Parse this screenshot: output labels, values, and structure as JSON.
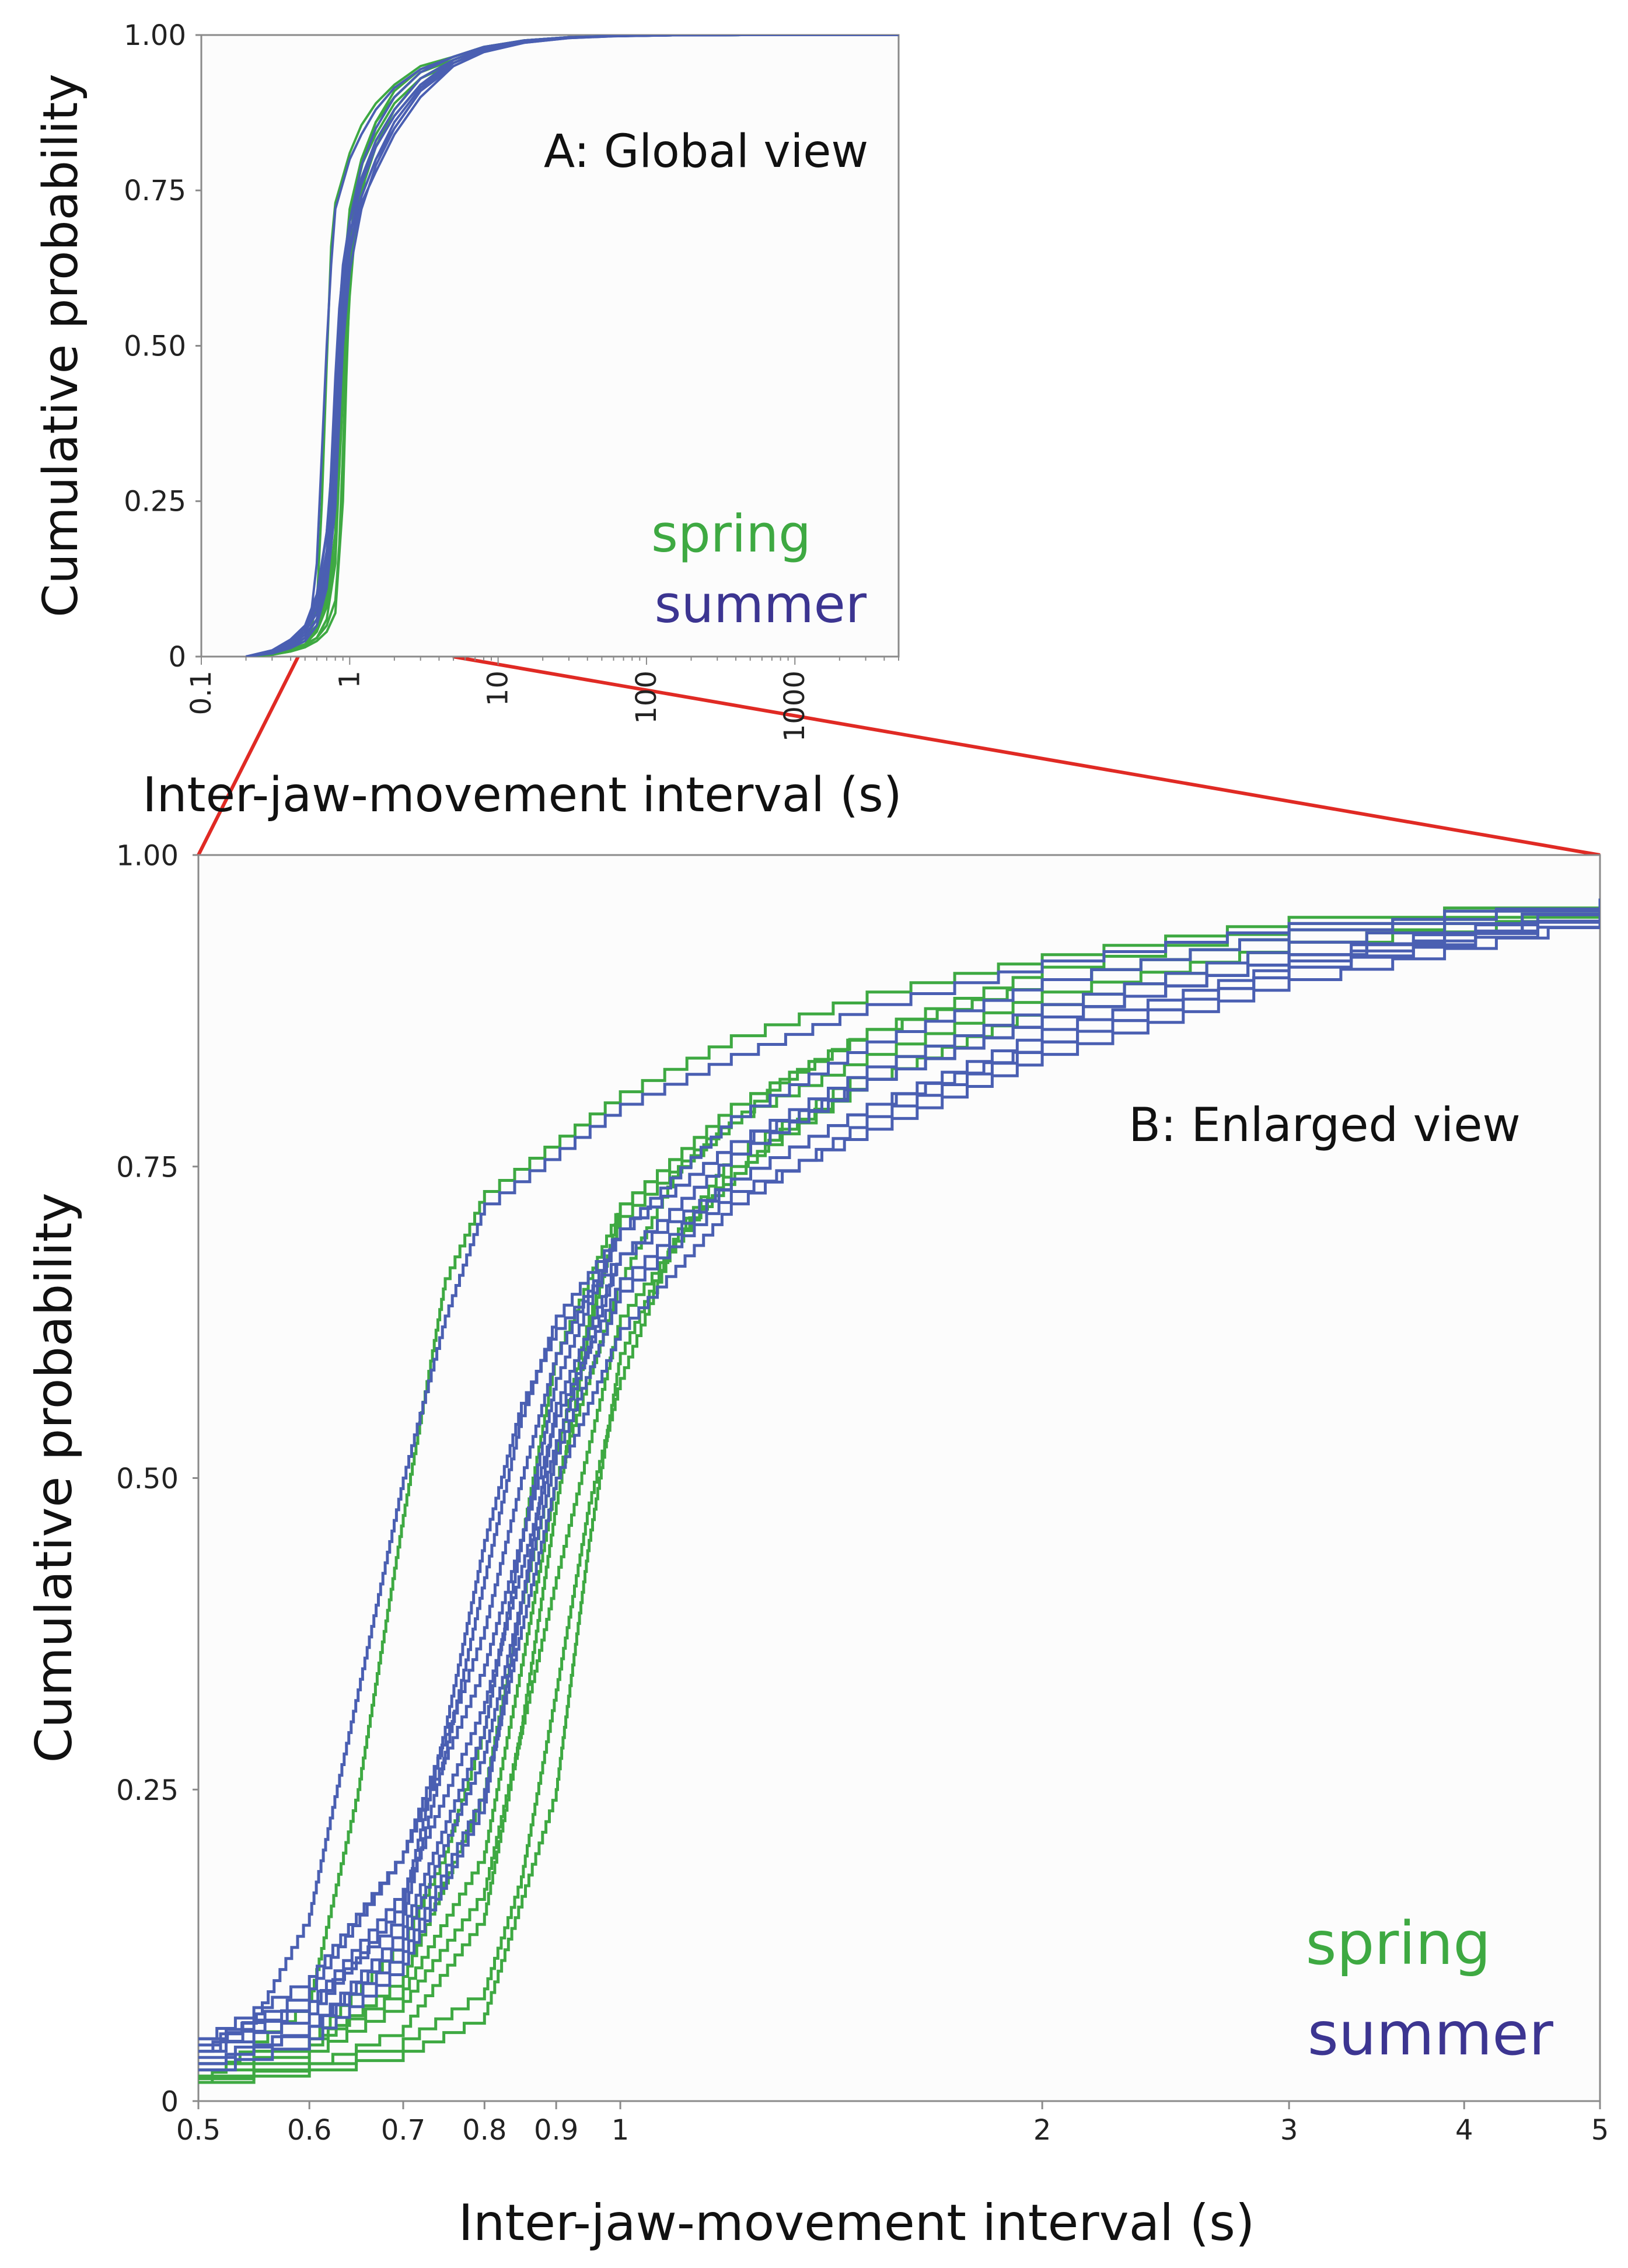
{
  "colors": {
    "spring": "#3ea942",
    "summer": "#4a5fb2",
    "spring_text": "#3ea942",
    "summer_text": "#3c3591",
    "zoom_lines": "#e02a24"
  },
  "chart_data": [
    {
      "type": "line",
      "panel": "A",
      "annotation": "A: Global view",
      "xlabel": "Inter-jaw-movement interval (s)",
      "ylabel": "Cumulative probability",
      "x_scale": "log",
      "xlim": [
        0.1,
        5000
      ],
      "ylim": [
        0,
        1
      ],
      "x_ticks": [
        "0.1",
        "1",
        "10",
        "100",
        "1000"
      ],
      "y_ticks": [
        "0",
        "0.25",
        "0.50",
        "0.75",
        "1.00"
      ],
      "legend": [
        {
          "name": "spring",
          "color": "#3ea942"
        },
        {
          "name": "summer",
          "color": "#3c3591"
        }
      ],
      "legend_position": "bottom-right",
      "note": "Same empirical CDF curves as panel B, shown over the full interval range"
    },
    {
      "type": "line",
      "panel": "B",
      "annotation": "B: Enlarged view",
      "xlabel": "Inter-jaw-movement interval (s)",
      "ylabel": "Cumulative probability",
      "x_scale": "log",
      "xlim": [
        0.5,
        5
      ],
      "ylim": [
        0,
        1
      ],
      "x_ticks": [
        "0.5",
        "0.6",
        "0.7",
        "0.8",
        "0.9",
        "1",
        "2",
        "3",
        "4",
        "5"
      ],
      "y_ticks": [
        "0",
        "0.25",
        "0.50",
        "0.75",
        "1.00"
      ],
      "legend": [
        {
          "name": "spring",
          "color": "#3ea942"
        },
        {
          "name": "summer",
          "color": "#3c3591"
        }
      ],
      "legend_position": "bottom-right",
      "series": [
        {
          "name": "spring",
          "x": [
            0.5,
            0.6,
            0.65,
            0.7,
            0.75,
            0.8,
            1.0,
            1.2,
            1.5,
            2,
            3,
            5
          ],
          "y": [
            0.015,
            0.08,
            0.25,
            0.47,
            0.66,
            0.73,
            0.81,
            0.855,
            0.89,
            0.92,
            0.95,
            0.965
          ]
        },
        {
          "name": "spring",
          "x": [
            0.5,
            0.6,
            0.7,
            0.8,
            0.85,
            0.9,
            0.95,
            1.0,
            1.2,
            1.5,
            2,
            3,
            5
          ],
          "y": [
            0.018,
            0.03,
            0.06,
            0.15,
            0.3,
            0.48,
            0.62,
            0.72,
            0.8,
            0.86,
            0.9,
            0.94,
            0.96
          ]
        },
        {
          "name": "spring",
          "x": [
            0.5,
            0.6,
            0.7,
            0.8,
            0.85,
            0.9,
            0.95,
            1.0,
            1.1,
            1.2,
            1.5,
            2,
            3,
            5
          ],
          "y": [
            0.02,
            0.03,
            0.05,
            0.09,
            0.18,
            0.33,
            0.48,
            0.58,
            0.7,
            0.76,
            0.83,
            0.88,
            0.93,
            0.955
          ]
        },
        {
          "name": "spring",
          "x": [
            0.5,
            0.6,
            0.7,
            0.8,
            0.9,
            0.95,
            1.0,
            1.1,
            1.3,
            1.5,
            2,
            3,
            5
          ],
          "y": [
            0.015,
            0.025,
            0.04,
            0.07,
            0.25,
            0.45,
            0.6,
            0.7,
            0.78,
            0.82,
            0.87,
            0.92,
            0.955
          ]
        },
        {
          "name": "spring",
          "x": [
            0.5,
            0.6,
            0.7,
            0.8,
            0.85,
            0.9,
            1.0,
            1.1,
            1.3,
            1.5,
            2,
            3,
            5
          ],
          "y": [
            0.03,
            0.05,
            0.09,
            0.2,
            0.35,
            0.5,
            0.66,
            0.75,
            0.82,
            0.86,
            0.9,
            0.94,
            0.965
          ]
        },
        {
          "name": "spring",
          "x": [
            0.5,
            0.6,
            0.7,
            0.8,
            0.85,
            0.9,
            0.95,
            1.0,
            1.2,
            1.5,
            2,
            3,
            5
          ],
          "y": [
            0.025,
            0.045,
            0.1,
            0.25,
            0.4,
            0.52,
            0.63,
            0.71,
            0.79,
            0.84,
            0.89,
            0.93,
            0.96
          ]
        },
        {
          "name": "spring",
          "x": [
            0.5,
            0.6,
            0.7,
            0.75,
            0.8,
            0.85,
            0.9,
            1.0,
            1.2,
            1.5,
            2,
            3,
            5
          ],
          "y": [
            0.03,
            0.05,
            0.13,
            0.2,
            0.3,
            0.45,
            0.6,
            0.72,
            0.8,
            0.86,
            0.91,
            0.945,
            0.965
          ]
        },
        {
          "name": "spring",
          "x": [
            0.5,
            0.6,
            0.7,
            0.8,
            0.9,
            1.0,
            1.2,
            1.5,
            2,
            3,
            5
          ],
          "y": [
            0.02,
            0.04,
            0.08,
            0.17,
            0.42,
            0.63,
            0.75,
            0.82,
            0.88,
            0.93,
            0.96
          ]
        },
        {
          "name": "summer",
          "x": [
            0.5,
            0.55,
            0.6,
            0.65,
            0.7,
            0.75,
            0.8,
            1.0,
            1.2,
            1.5,
            2,
            3,
            5
          ],
          "y": [
            0.04,
            0.07,
            0.15,
            0.33,
            0.5,
            0.63,
            0.72,
            0.8,
            0.84,
            0.88,
            0.915,
            0.945,
            0.965
          ]
        },
        {
          "name": "summer",
          "x": [
            0.5,
            0.6,
            0.7,
            0.75,
            0.8,
            0.85,
            0.9,
            1.0,
            1.2,
            1.5,
            2,
            3,
            5
          ],
          "y": [
            0.05,
            0.08,
            0.15,
            0.28,
            0.42,
            0.55,
            0.63,
            0.7,
            0.77,
            0.82,
            0.87,
            0.92,
            0.955
          ]
        },
        {
          "name": "summer",
          "x": [
            0.5,
            0.6,
            0.7,
            0.8,
            0.85,
            0.9,
            1.0,
            1.2,
            1.5,
            2,
            3,
            5
          ],
          "y": [
            0.035,
            0.06,
            0.12,
            0.25,
            0.38,
            0.5,
            0.62,
            0.72,
            0.79,
            0.85,
            0.91,
            0.95
          ]
        },
        {
          "name": "summer",
          "x": [
            0.5,
            0.6,
            0.7,
            0.8,
            0.9,
            1.0,
            1.2,
            1.5,
            2,
            3,
            5
          ],
          "y": [
            0.045,
            0.09,
            0.2,
            0.35,
            0.55,
            0.66,
            0.74,
            0.8,
            0.86,
            0.915,
            0.955
          ]
        },
        {
          "name": "summer",
          "x": [
            0.5,
            0.6,
            0.7,
            0.75,
            0.8,
            0.85,
            0.9,
            1.0,
            1.2,
            1.5,
            2,
            3,
            5
          ],
          "y": [
            0.04,
            0.07,
            0.16,
            0.3,
            0.45,
            0.56,
            0.62,
            0.68,
            0.74,
            0.8,
            0.85,
            0.91,
            0.955
          ]
        },
        {
          "name": "summer",
          "x": [
            0.5,
            0.6,
            0.7,
            0.8,
            0.85,
            0.9,
            1.0,
            1.2,
            1.5,
            2,
            3,
            5
          ],
          "y": [
            0.03,
            0.06,
            0.14,
            0.3,
            0.45,
            0.58,
            0.7,
            0.77,
            0.83,
            0.88,
            0.93,
            0.96
          ]
        },
        {
          "name": "summer",
          "x": [
            0.5,
            0.6,
            0.7,
            0.8,
            0.85,
            0.9,
            1.0,
            1.2,
            1.5,
            2,
            3,
            5
          ],
          "y": [
            0.025,
            0.05,
            0.11,
            0.24,
            0.4,
            0.56,
            0.68,
            0.76,
            0.82,
            0.87,
            0.92,
            0.955
          ]
        },
        {
          "name": "summer",
          "x": [
            0.5,
            0.6,
            0.7,
            0.8,
            0.85,
            0.9,
            1.0,
            1.2,
            1.5,
            2,
            3,
            5
          ],
          "y": [
            0.05,
            0.1,
            0.2,
            0.38,
            0.5,
            0.6,
            0.7,
            0.79,
            0.85,
            0.9,
            0.94,
            0.965
          ]
        },
        {
          "name": "summer",
          "x": [
            0.5,
            0.6,
            0.7,
            0.8,
            0.9,
            1.0,
            1.2,
            1.5,
            2,
            3,
            5
          ],
          "y": [
            0.03,
            0.06,
            0.13,
            0.28,
            0.52,
            0.65,
            0.73,
            0.78,
            0.84,
            0.9,
            0.95
          ]
        },
        {
          "name": "summer",
          "x": [
            0.5,
            0.6,
            0.7,
            0.8,
            0.9,
            1.0,
            1.2,
            1.5,
            2,
            3,
            5
          ],
          "y": [
            0.04,
            0.08,
            0.17,
            0.32,
            0.53,
            0.68,
            0.76,
            0.82,
            0.87,
            0.92,
            0.96
          ]
        }
      ]
    }
  ]
}
